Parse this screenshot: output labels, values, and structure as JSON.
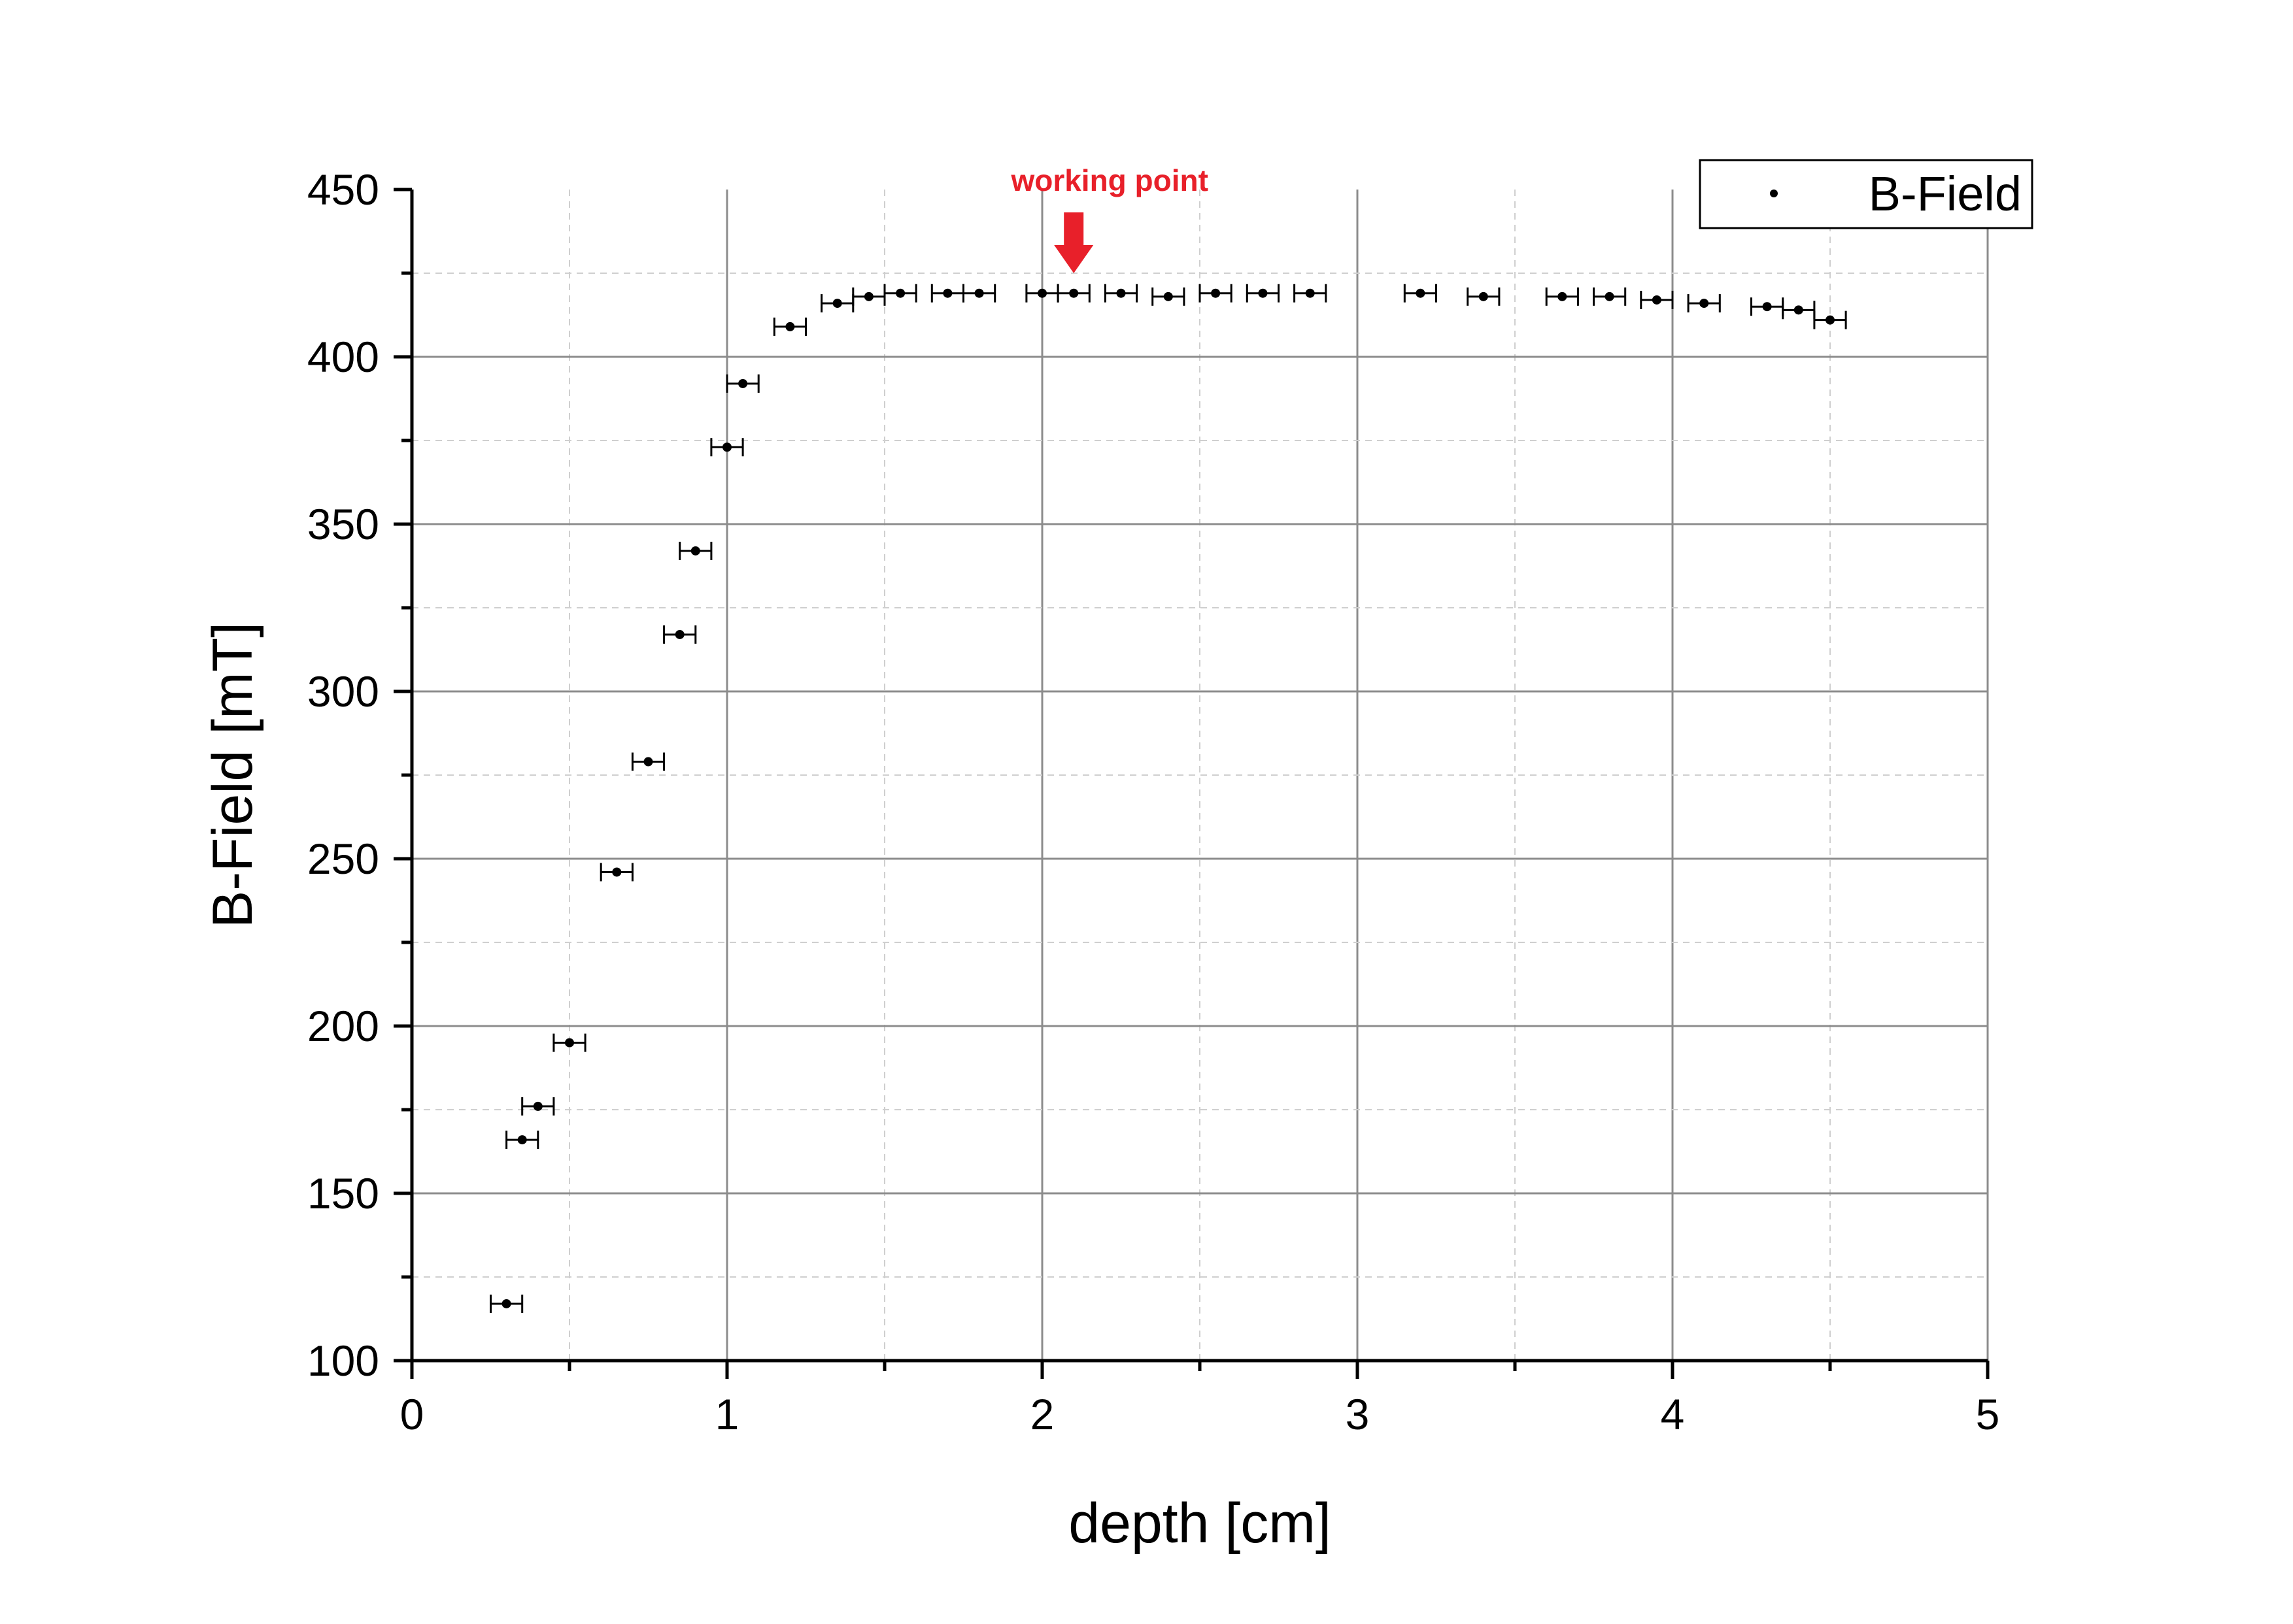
{
  "chart_data": {
    "type": "scatter",
    "title": "",
    "xlabel": "depth [cm]",
    "ylabel": "B-Field [mT]",
    "xlim": [
      0,
      5
    ],
    "ylim": [
      100,
      450
    ],
    "xticks": [
      "0",
      "1",
      "2",
      "3",
      "4",
      "5"
    ],
    "yticks": [
      "100",
      "150",
      "200",
      "250",
      "300",
      "350",
      "400",
      "450"
    ],
    "grid": true,
    "legend_position": "top-right",
    "series": [
      {
        "name": "B-Field",
        "color": "#000000",
        "marker": "dot",
        "x_error": 0.05,
        "points": [
          {
            "x": 0.3,
            "y": 117
          },
          {
            "x": 0.35,
            "y": 166
          },
          {
            "x": 0.4,
            "y": 176
          },
          {
            "x": 0.5,
            "y": 195
          },
          {
            "x": 0.65,
            "y": 246
          },
          {
            "x": 0.75,
            "y": 279
          },
          {
            "x": 0.85,
            "y": 317
          },
          {
            "x": 0.9,
            "y": 342
          },
          {
            "x": 1.0,
            "y": 373
          },
          {
            "x": 1.05,
            "y": 392
          },
          {
            "x": 1.2,
            "y": 409
          },
          {
            "x": 1.35,
            "y": 416
          },
          {
            "x": 1.45,
            "y": 418
          },
          {
            "x": 1.55,
            "y": 419
          },
          {
            "x": 1.7,
            "y": 419
          },
          {
            "x": 1.8,
            "y": 419
          },
          {
            "x": 2.0,
            "y": 419
          },
          {
            "x": 2.1,
            "y": 419
          },
          {
            "x": 2.25,
            "y": 419
          },
          {
            "x": 2.4,
            "y": 418
          },
          {
            "x": 2.55,
            "y": 419
          },
          {
            "x": 2.7,
            "y": 419
          },
          {
            "x": 2.85,
            "y": 419
          },
          {
            "x": 3.2,
            "y": 419
          },
          {
            "x": 3.4,
            "y": 418
          },
          {
            "x": 3.65,
            "y": 418
          },
          {
            "x": 3.8,
            "y": 418
          },
          {
            "x": 3.95,
            "y": 417
          },
          {
            "x": 4.1,
            "y": 416
          },
          {
            "x": 4.3,
            "y": 415
          },
          {
            "x": 4.4,
            "y": 414
          },
          {
            "x": 4.5,
            "y": 411
          }
        ]
      }
    ],
    "annotations": [
      {
        "text": "working point",
        "x": 2.1,
        "color": "#e8202a"
      }
    ]
  }
}
